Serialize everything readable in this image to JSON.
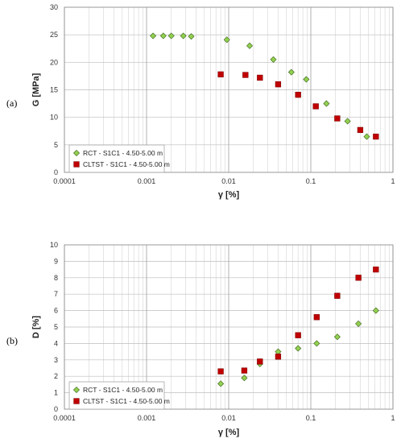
{
  "chart_data": [
    {
      "type": "scatter",
      "panel_label": "(a)",
      "xlabel": "γ [%]",
      "ylabel": "G [MPa]",
      "xscale": "log",
      "xlim": [
        0.0001,
        1
      ],
      "ylim": [
        0,
        30
      ],
      "x_ticks": [
        "0.0001",
        "0.001",
        "0.01",
        "0.1",
        "1"
      ],
      "y_ticks": [
        "0",
        "5",
        "10",
        "15",
        "20",
        "25",
        "30"
      ],
      "grid": true,
      "legend_position": "bottom-left",
      "series": [
        {
          "name": "RCT - S1C1 - 4.50-5.00 m",
          "marker": "diamond",
          "color": "#92d050",
          "points": [
            [
              0.0012,
              24.8
            ],
            [
              0.0016,
              24.8
            ],
            [
              0.002,
              24.8
            ],
            [
              0.0028,
              24.8
            ],
            [
              0.0035,
              24.7
            ],
            [
              0.0095,
              24.1
            ],
            [
              0.018,
              23.0
            ],
            [
              0.035,
              20.5
            ],
            [
              0.058,
              18.2
            ],
            [
              0.088,
              16.9
            ],
            [
              0.155,
              12.5
            ],
            [
              0.28,
              9.3
            ],
            [
              0.48,
              6.5
            ]
          ]
        },
        {
          "name": "CLTST - S1C1 - 4.50-5.00 m",
          "marker": "square",
          "color": "#c00000",
          "points": [
            [
              0.008,
              17.8
            ],
            [
              0.016,
              17.7
            ],
            [
              0.024,
              17.2
            ],
            [
              0.04,
              16.0
            ],
            [
              0.07,
              14.1
            ],
            [
              0.115,
              12.0
            ],
            [
              0.21,
              9.8
            ],
            [
              0.4,
              7.7
            ],
            [
              0.62,
              6.5
            ]
          ]
        }
      ]
    },
    {
      "type": "scatter",
      "panel_label": "(b)",
      "xlabel": "γ [%]",
      "ylabel": "D [%]",
      "xscale": "log",
      "xlim": [
        0.0001,
        1
      ],
      "ylim": [
        0,
        10
      ],
      "x_ticks": [
        "0.0001",
        "0.001",
        "0.01",
        "0.1",
        "1"
      ],
      "y_ticks": [
        "0",
        "1",
        "2",
        "3",
        "4",
        "5",
        "6",
        "7",
        "8",
        "9",
        "10"
      ],
      "grid": true,
      "legend_position": "bottom-left",
      "series": [
        {
          "name": "RCT - S1C1 - 4.50-5.00 m",
          "marker": "diamond",
          "color": "#92d050",
          "points": [
            [
              0.008,
              1.55
            ],
            [
              0.0155,
              1.9
            ],
            [
              0.024,
              2.75
            ],
            [
              0.04,
              3.5
            ],
            [
              0.07,
              3.7
            ],
            [
              0.118,
              4.0
            ],
            [
              0.21,
              4.4
            ],
            [
              0.38,
              5.2
            ],
            [
              0.62,
              6.0
            ]
          ]
        },
        {
          "name": "CLTST - S1C1 - 4.50-5.00 m",
          "marker": "square",
          "color": "#c00000",
          "points": [
            [
              0.008,
              2.3
            ],
            [
              0.0155,
              2.35
            ],
            [
              0.024,
              2.9
            ],
            [
              0.04,
              3.2
            ],
            [
              0.07,
              4.5
            ],
            [
              0.118,
              5.6
            ],
            [
              0.21,
              6.9
            ],
            [
              0.38,
              8.0
            ],
            [
              0.62,
              8.5
            ]
          ]
        }
      ]
    }
  ]
}
